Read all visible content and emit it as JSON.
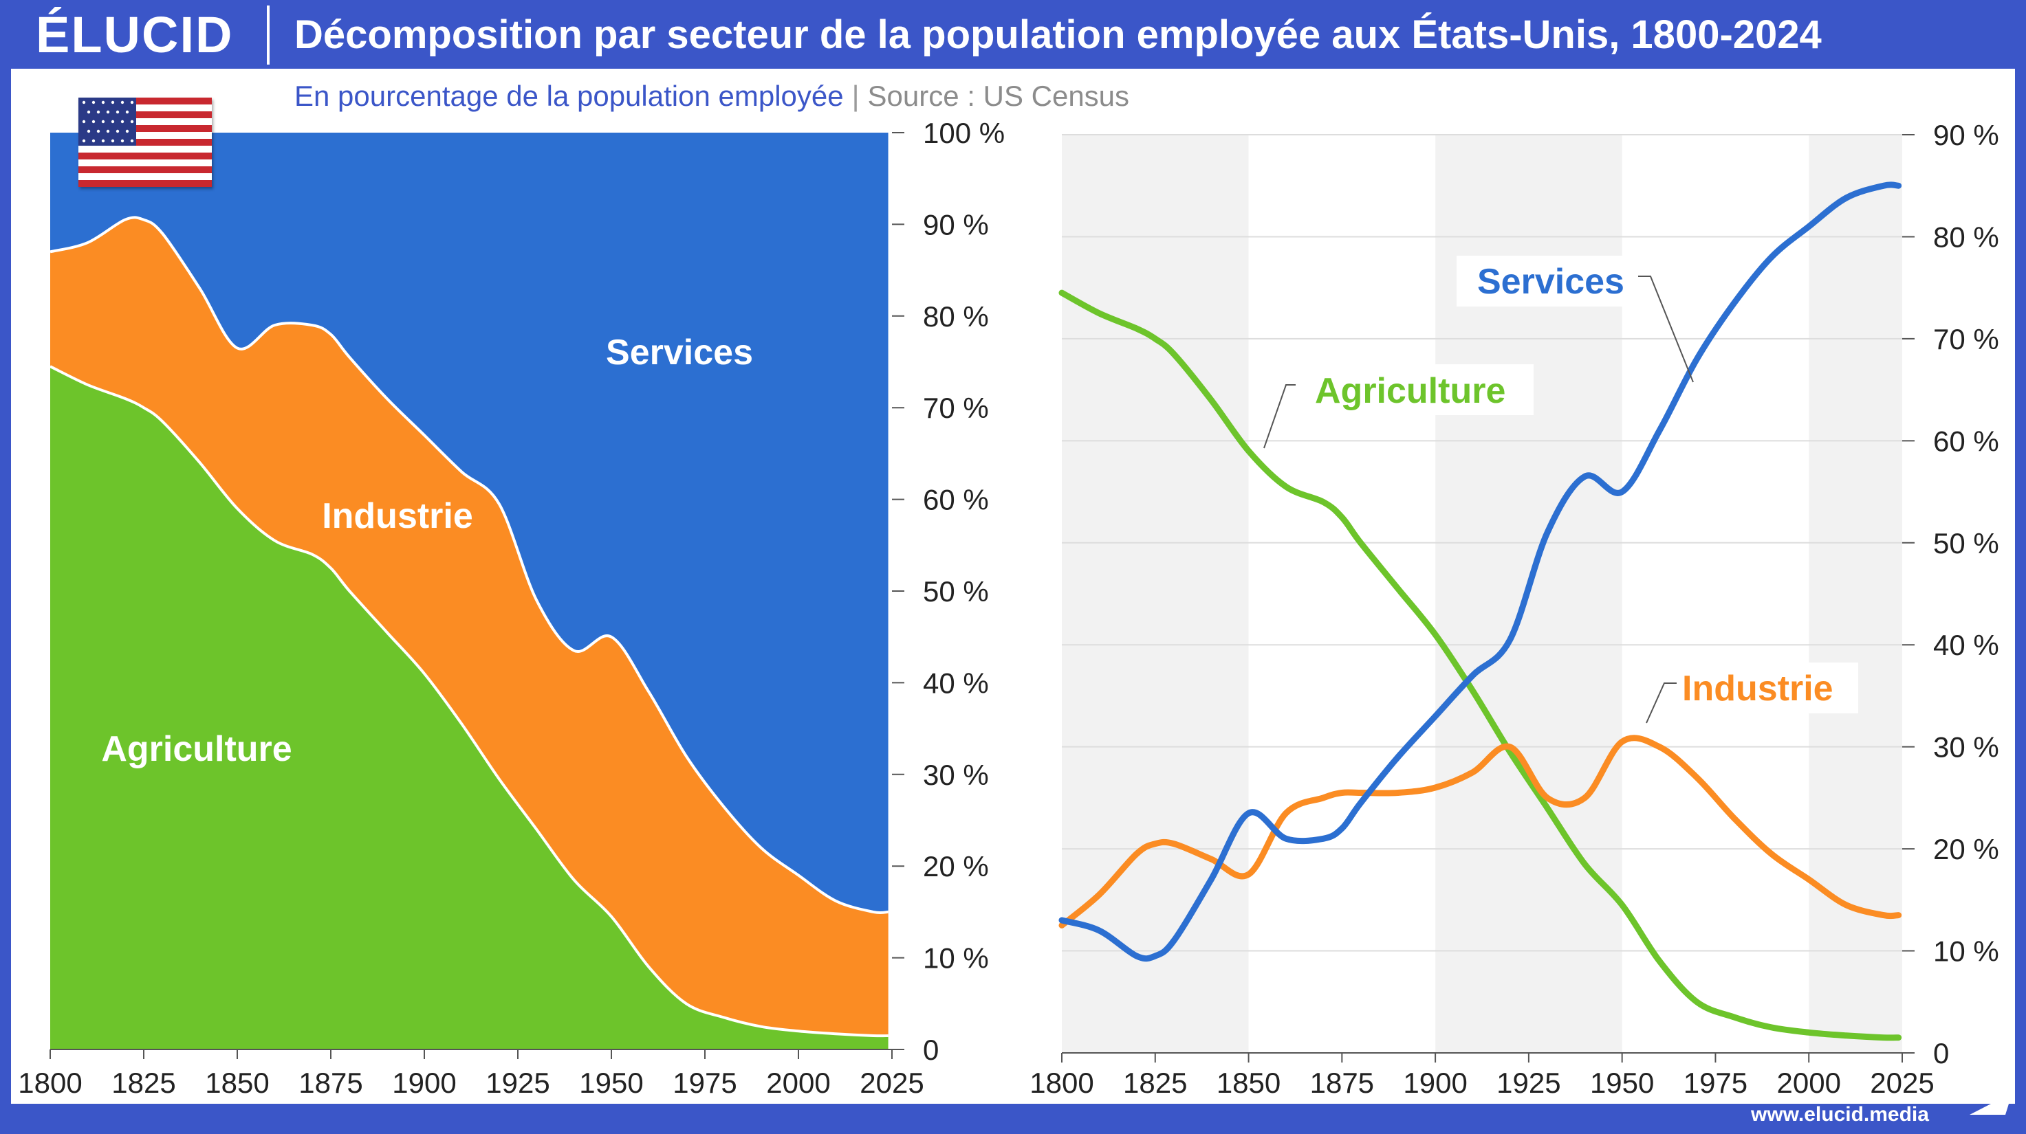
{
  "header": {
    "logo": "ÉLUCID",
    "title": "Décomposition par secteur de la population employée aux États-Unis, 1800-2024",
    "subtitle": "En pourcentage de la population employée",
    "separator": "|",
    "source": "Source : US Census"
  },
  "footer": {
    "url": "www.elucid.media"
  },
  "colors": {
    "agriculture": "#6dc42b",
    "industry": "#fb8c23",
    "services": "#2c6fd1",
    "brand": "#3b56c8"
  },
  "flag": {
    "icon": "us-flag-icon"
  },
  "chart_data": [
    {
      "type": "area",
      "stacked": true,
      "x": [
        1800,
        1810,
        1820,
        1825,
        1830,
        1840,
        1850,
        1860,
        1870,
        1875,
        1880,
        1890,
        1900,
        1910,
        1920,
        1930,
        1940,
        1950,
        1960,
        1970,
        1980,
        1990,
        2000,
        2010,
        2020,
        2024
      ],
      "series": [
        {
          "name": "Agriculture",
          "values": [
            74.5,
            72.5,
            71,
            70,
            68.5,
            64,
            59,
            55.5,
            54,
            52.5,
            50,
            45.5,
            41,
            35.5,
            29.5,
            24,
            18.5,
            14.5,
            9,
            5,
            3.5,
            2.5,
            2,
            1.7,
            1.5,
            1.5
          ]
        },
        {
          "name": "Industrie",
          "values": [
            12.5,
            15.5,
            19.5,
            20.5,
            20.5,
            19,
            17.5,
            23.5,
            25,
            25.5,
            25.5,
            25.5,
            26,
            27.5,
            30,
            25,
            25,
            30.5,
            30,
            27,
            23,
            19.5,
            17,
            14.5,
            13.5,
            13.5
          ]
        },
        {
          "name": "Services",
          "values": [
            13,
            12,
            9.5,
            9.5,
            11,
            17,
            23.5,
            21,
            21,
            22,
            24.5,
            29,
            33,
            37,
            40.5,
            51,
            56.5,
            55,
            61,
            68,
            73.5,
            78,
            81,
            83.8,
            85,
            85
          ]
        }
      ],
      "labels": [
        "Services",
        "Industrie",
        "Agriculture"
      ],
      "xticks": [
        1800,
        1825,
        1850,
        1875,
        1900,
        1925,
        1950,
        1975,
        2000,
        2025
      ],
      "yticks": [
        "0",
        "10 %",
        "20 %",
        "30 %",
        "40 %",
        "50 %",
        "60 %",
        "70 %",
        "80 %",
        "90 %",
        "100 %"
      ],
      "ylim": [
        0,
        100
      ],
      "xlim": [
        1800,
        2025
      ],
      "yaxis_position": "right",
      "grid": false
    },
    {
      "type": "line",
      "x": [
        1800,
        1810,
        1820,
        1825,
        1830,
        1840,
        1850,
        1860,
        1870,
        1875,
        1880,
        1890,
        1900,
        1910,
        1920,
        1930,
        1940,
        1950,
        1960,
        1970,
        1980,
        1990,
        2000,
        2010,
        2020,
        2024
      ],
      "series": [
        {
          "name": "Agriculture",
          "values": [
            74.5,
            72.5,
            71,
            70,
            68.5,
            64,
            59,
            55.5,
            54,
            52.5,
            50,
            45.5,
            41,
            35.5,
            29.5,
            24,
            18.5,
            14.5,
            9,
            5,
            3.5,
            2.5,
            2,
            1.7,
            1.5,
            1.5
          ]
        },
        {
          "name": "Industrie",
          "values": [
            12.5,
            15.5,
            19.5,
            20.5,
            20.5,
            19,
            17.5,
            23.5,
            25,
            25.5,
            25.5,
            25.5,
            26,
            27.5,
            30,
            25,
            25,
            30.5,
            30,
            27,
            23,
            19.5,
            17,
            14.5,
            13.5,
            13.5
          ]
        },
        {
          "name": "Services",
          "values": [
            13,
            12,
            9.5,
            9.5,
            11,
            17,
            23.5,
            21,
            21,
            22,
            24.5,
            29,
            33,
            37,
            40.5,
            51,
            56.5,
            55,
            61,
            68,
            73.5,
            78,
            81,
            83.8,
            85,
            85
          ]
        }
      ],
      "labels": [
        "Services",
        "Agriculture",
        "Industrie"
      ],
      "xticks": [
        1800,
        1825,
        1850,
        1875,
        1900,
        1925,
        1950,
        1975,
        2000,
        2025
      ],
      "yticks": [
        "0",
        "10 %",
        "20 %",
        "30 %",
        "40 %",
        "50 %",
        "60 %",
        "70 %",
        "80 %",
        "90 %"
      ],
      "ylim": [
        0,
        90
      ],
      "xlim": [
        1800,
        2025
      ],
      "yaxis_position": "right",
      "grid": true,
      "shaded_x_ranges": [
        [
          1800,
          1850
        ],
        [
          1900,
          1950
        ],
        [
          2000,
          2025
        ]
      ]
    }
  ]
}
